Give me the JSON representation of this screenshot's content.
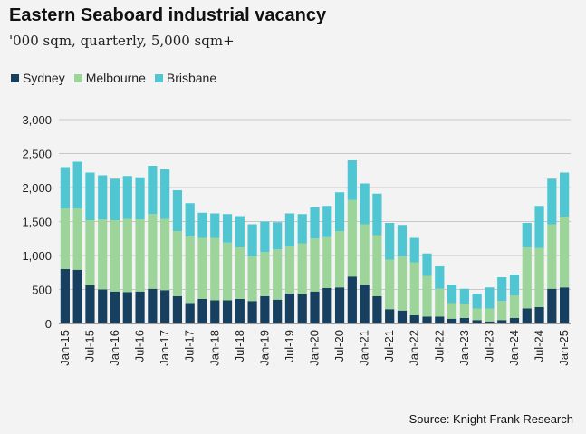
{
  "chart_data": {
    "type": "bar",
    "stacked": true,
    "title": "Eastern Seaboard industrial vacancy",
    "subtitle": "'000 sqm, quarterly, 5,000 sqm+",
    "source": "Source: Knight Frank Research",
    "ylim": [
      0,
      3000
    ],
    "yticks": [
      "0",
      "500",
      "1,000",
      "1,500",
      "2,000",
      "2,500",
      "3,000"
    ],
    "ytick_values": [
      0,
      500,
      1000,
      1500,
      2000,
      2500,
      3000
    ],
    "grid": true,
    "legend_position": "top-left",
    "categories": [
      "Jan-15",
      "Apr-15",
      "Jul-15",
      "Oct-15",
      "Jan-16",
      "Apr-16",
      "Jul-16",
      "Oct-16",
      "Jan-17",
      "Apr-17",
      "Jul-17",
      "Oct-17",
      "Jan-18",
      "Apr-18",
      "Jul-18",
      "Oct-18",
      "Jan-19",
      "Apr-19",
      "Jul-19",
      "Oct-19",
      "Jan-20",
      "Apr-20",
      "Jul-20",
      "Oct-20",
      "Jan-21",
      "Apr-21",
      "Jul-21",
      "Oct-21",
      "Jan-22",
      "Apr-22",
      "Jul-22",
      "Oct-22",
      "Jan-23",
      "Apr-23",
      "Jul-23",
      "Oct-23",
      "Jan-24",
      "Apr-24",
      "Jul-24",
      "Oct-24",
      "Jan-25"
    ],
    "tick_labels": [
      "Jan-15",
      "Jul-15",
      "Jan-16",
      "Jul-16",
      "Jan-17",
      "Jul-17",
      "Jan-18",
      "Jul-18",
      "Jan-19",
      "Jul-19",
      "Jan-20",
      "Jul-20",
      "Jan-21",
      "Jul-21",
      "Jan-22",
      "Jul-22",
      "Jan-23",
      "Jul-23",
      "Jan-24",
      "Jul-24",
      "Jan-25"
    ],
    "series": [
      {
        "name": "Sydney",
        "color": "#173f5f",
        "values": [
          800,
          790,
          560,
          500,
          470,
          460,
          470,
          510,
          490,
          400,
          300,
          360,
          340,
          340,
          360,
          330,
          400,
          350,
          440,
          430,
          470,
          520,
          530,
          690,
          570,
          400,
          210,
          190,
          120,
          100,
          100,
          70,
          80,
          50,
          30,
          50,
          80,
          220,
          240,
          510,
          530
        ]
      },
      {
        "name": "Melbourne",
        "color": "#9dd49a",
        "values": [
          890,
          900,
          960,
          1030,
          1050,
          1080,
          1060,
          1100,
          1050,
          960,
          980,
          900,
          920,
          850,
          760,
          660,
          650,
          740,
          690,
          750,
          780,
          750,
          830,
          1130,
          890,
          900,
          730,
          800,
          780,
          600,
          410,
          230,
          210,
          170,
          190,
          280,
          330,
          900,
          870,
          950,
          1040
        ]
      },
      {
        "name": "Brisbane",
        "color": "#4fc6d2",
        "values": [
          610,
          690,
          700,
          650,
          610,
          630,
          620,
          710,
          730,
          600,
          490,
          370,
          360,
          420,
          460,
          470,
          450,
          400,
          490,
          430,
          460,
          460,
          570,
          580,
          600,
          610,
          540,
          460,
          360,
          330,
          330,
          270,
          220,
          220,
          310,
          350,
          310,
          360,
          620,
          670,
          650
        ]
      }
    ]
  }
}
